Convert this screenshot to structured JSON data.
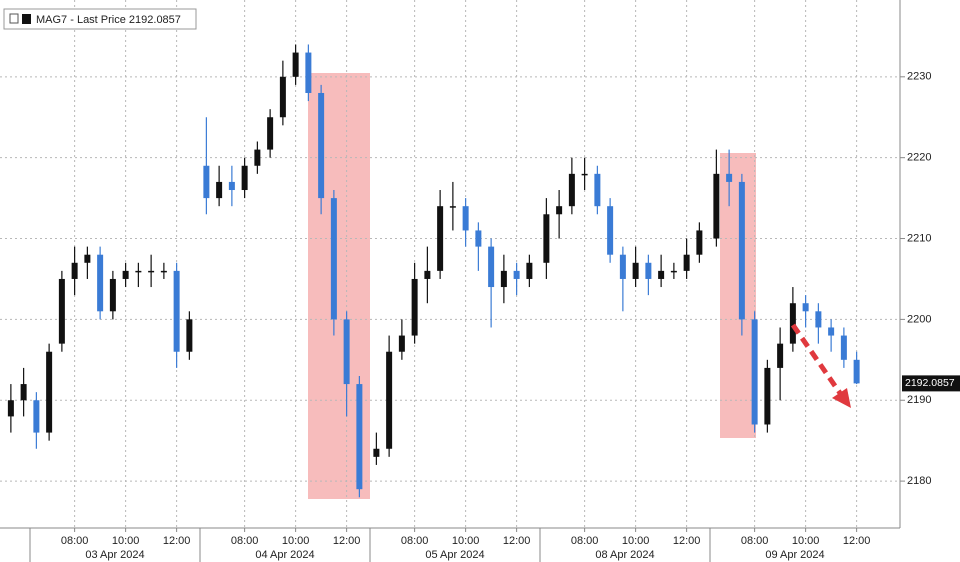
{
  "chart_data": {
    "type": "candlestick",
    "legend_label": "MAG7 - Last Price 2192.0857",
    "last_price": 2192.0857,
    "up_color": "#111111",
    "down_color": "#3a7bd5",
    "grid": true,
    "day_labels": [
      {
        "value": "2024-04-03",
        "label": "03 Apr 2024"
      },
      {
        "value": "2024-04-04",
        "label": "04 Apr 2024"
      },
      {
        "value": "2024-04-05",
        "label": "05 Apr 2024"
      },
      {
        "value": "2024-04-08",
        "label": "08 Apr 2024"
      },
      {
        "value": "2024-04-09",
        "label": "09 Apr 2024"
      }
    ],
    "xticks": [
      {
        "value": "2024-04-03 08:00",
        "label": "08:00"
      },
      {
        "value": "2024-04-03 10:00",
        "label": "10:00"
      },
      {
        "value": "2024-04-03 12:00",
        "label": "12:00"
      },
      {
        "value": "2024-04-04 08:00",
        "label": "08:00"
      },
      {
        "value": "2024-04-04 10:00",
        "label": "10:00"
      },
      {
        "value": "2024-04-04 12:00",
        "label": "12:00"
      },
      {
        "value": "2024-04-05 08:00",
        "label": "08:00"
      },
      {
        "value": "2024-04-05 10:00",
        "label": "10:00"
      },
      {
        "value": "2024-04-05 12:00",
        "label": "12:00"
      },
      {
        "value": "2024-04-08 08:00",
        "label": "08:00"
      },
      {
        "value": "2024-04-08 10:00",
        "label": "10:00"
      },
      {
        "value": "2024-04-08 12:00",
        "label": "12:00"
      },
      {
        "value": "2024-04-09 08:00",
        "label": "08:00"
      },
      {
        "value": "2024-04-09 10:00",
        "label": "10:00"
      },
      {
        "value": "2024-04-09 12:00",
        "label": "12:00"
      }
    ],
    "ylim": [
      2174.2,
      2239.5
    ],
    "yticks": [
      2180,
      2190,
      2200,
      2210,
      2220,
      2230
    ],
    "x": [
      "2024-04-03 05:30",
      "2024-04-03 06:00",
      "2024-04-03 06:30",
      "2024-04-03 07:00",
      "2024-04-03 07:30",
      "2024-04-03 08:00",
      "2024-04-03 08:30",
      "2024-04-03 09:00",
      "2024-04-03 09:30",
      "2024-04-03 10:00",
      "2024-04-03 10:30",
      "2024-04-03 11:00",
      "2024-04-03 11:30",
      "2024-04-03 12:00",
      "2024-04-03 12:30",
      "2024-04-04 06:30",
      "2024-04-04 07:00",
      "2024-04-04 07:30",
      "2024-04-04 08:00",
      "2024-04-04 08:30",
      "2024-04-04 09:00",
      "2024-04-04 09:30",
      "2024-04-04 10:00",
      "2024-04-04 10:30",
      "2024-04-04 11:00",
      "2024-04-04 11:30",
      "2024-04-04 12:00",
      "2024-04-04 12:30",
      "2024-04-05 06:30",
      "2024-04-05 07:00",
      "2024-04-05 07:30",
      "2024-04-05 08:00",
      "2024-04-05 08:30",
      "2024-04-05 09:00",
      "2024-04-05 09:30",
      "2024-04-05 10:00",
      "2024-04-05 10:30",
      "2024-04-05 11:00",
      "2024-04-05 11:30",
      "2024-04-05 12:00",
      "2024-04-05 12:30",
      "2024-04-08 06:30",
      "2024-04-08 07:00",
      "2024-04-08 07:30",
      "2024-04-08 08:00",
      "2024-04-08 08:30",
      "2024-04-08 09:00",
      "2024-04-08 09:30",
      "2024-04-08 10:00",
      "2024-04-08 10:30",
      "2024-04-08 11:00",
      "2024-04-08 11:30",
      "2024-04-08 12:00",
      "2024-04-08 12:30",
      "2024-04-09 06:30",
      "2024-04-09 07:00",
      "2024-04-09 07:30",
      "2024-04-09 08:00",
      "2024-04-09 08:30",
      "2024-04-09 09:00",
      "2024-04-09 09:30",
      "2024-04-09 10:00",
      "2024-04-09 10:30",
      "2024-04-09 11:00",
      "2024-04-09 11:30",
      "2024-04-09 12:00"
    ],
    "series": [
      {
        "name": "MAG7",
        "open": [
          2188,
          2190,
          2190,
          2186,
          2197,
          2205,
          2207,
          2208,
          2201,
          2205,
          2206,
          2206,
          2206,
          2206,
          2196,
          2219,
          2215,
          2217,
          2216,
          2219,
          2221,
          2225,
          2230,
          2233,
          2228,
          2215,
          2200,
          2192,
          2183,
          2184,
          2196,
          2198,
          2205,
          2206,
          2214,
          2214,
          2211,
          2209,
          2204,
          2206,
          2205,
          2207,
          2213,
          2214,
          2218,
          2218,
          2214,
          2208,
          2205,
          2207,
          2205,
          2206,
          2206,
          2208,
          2210,
          2218,
          2217,
          2200,
          2187,
          2194,
          2197,
          2202,
          2201,
          2199,
          2198,
          2195
        ],
        "high": [
          2192,
          2194,
          2191,
          2197,
          2206,
          2209,
          2209,
          2209,
          2206,
          2207,
          2207,
          2208,
          2207,
          2207,
          2201,
          2225,
          2219,
          2219,
          2220,
          2222,
          2226,
          2232,
          2234,
          2234,
          2229,
          2216,
          2201,
          2193,
          2186,
          2198,
          2200,
          2207,
          2209,
          2216,
          2217,
          2215,
          2212,
          2210,
          2208,
          2207,
          2208,
          2215,
          2216,
          2220,
          2220,
          2219,
          2215,
          2209,
          2209,
          2208,
          2208,
          2207,
          2210,
          2212,
          2221,
          2221,
          2218,
          2201,
          2195,
          2199,
          2204,
          2203,
          2202,
          2200,
          2199,
          2196
        ],
        "low": [
          2186,
          2188,
          2184,
          2185,
          2196,
          2203,
          2205,
          2200,
          2200,
          2204,
          2204,
          2204,
          2205,
          2194,
          2195,
          2213,
          2214,
          2214,
          2215,
          2218,
          2220,
          2224,
          2229,
          2227,
          2213,
          2198,
          2188,
          2178,
          2182,
          2183,
          2195,
          2197,
          2202,
          2205,
          2211,
          2209,
          2206,
          2199,
          2202,
          2203,
          2204,
          2205,
          2210,
          2213,
          2216,
          2213,
          2207,
          2201,
          2204,
          2203,
          2204,
          2205,
          2205,
          2207,
          2209,
          2214,
          2198,
          2186,
          2186,
          2190,
          2196,
          2199,
          2197,
          2196,
          2194,
          2192
        ],
        "close": [
          2190,
          2192,
          2186,
          2196,
          2205,
          2207,
          2208,
          2201,
          2205,
          2206,
          2206,
          2206,
          2206,
          2196,
          2200,
          2215,
          2217,
          2216,
          2219,
          2221,
          2225,
          2230,
          2233,
          2228,
          2215,
          2200,
          2192,
          2179,
          2184,
          2196,
          2198,
          2205,
          2206,
          2214,
          2214,
          2211,
          2209,
          2204,
          2206,
          2205,
          2207,
          2213,
          2214,
          2218,
          2218,
          2214,
          2208,
          2205,
          2207,
          2205,
          2206,
          2206,
          2208,
          2211,
          2218,
          2217,
          2200,
          2187,
          2194,
          2197,
          2202,
          2201,
          2199,
          2198,
          2195,
          2192.0857
        ]
      }
    ]
  }
}
